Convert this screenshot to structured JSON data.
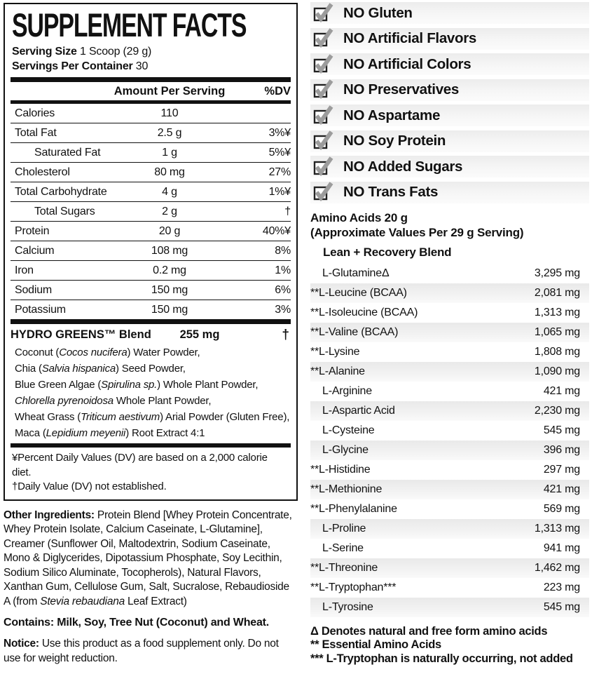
{
  "facts": {
    "title": "SUPPLEMENT FACTS",
    "serving_size_label": "Serving Size",
    "serving_size_value": "1 Scoop (29 g)",
    "servings_per_container_label": "Servings Per Container",
    "servings_per_container_value": "30",
    "column_headers": {
      "amount": "Amount Per Serving",
      "dv": "%DV"
    },
    "rows": [
      {
        "name": "Calories",
        "amount": "110",
        "dv": ""
      },
      {
        "name": "Total Fat",
        "amount": "2.5 g",
        "dv": "3%¥"
      },
      {
        "name": "Saturated Fat",
        "amount": "1 g",
        "dv": "5%¥"
      },
      {
        "name": "Cholesterol",
        "amount": "80 mg",
        "dv": "27%"
      },
      {
        "name": "Total Carbohydrate",
        "amount": "4 g",
        "dv": "1%¥"
      },
      {
        "name": "Total Sugars",
        "amount": "2 g",
        "dv": "†"
      },
      {
        "name": "Protein",
        "amount": "20 g",
        "dv": "40%¥"
      },
      {
        "name": "Calcium",
        "amount": "108 mg",
        "dv": "8%"
      },
      {
        "name": "Iron",
        "amount": "0.2 mg",
        "dv": "1%"
      },
      {
        "name": "Sodium",
        "amount": "150 mg",
        "dv": "6%"
      },
      {
        "name": "Potassium",
        "amount": "150 mg",
        "dv": "3%"
      }
    ],
    "blend": {
      "name": "HYDRO GREENS™ Blend",
      "amount": "255 mg",
      "dv": "†",
      "ingredient_lines": [
        [
          {
            "t": "Coconut ("
          },
          {
            "t": "Cocos nucifera",
            "i": true
          },
          {
            "t": ") Water Powder,"
          }
        ],
        [
          {
            "t": "Chia ("
          },
          {
            "t": "Salvia hispanica",
            "i": true
          },
          {
            "t": ") Seed Powder,"
          }
        ],
        [
          {
            "t": "Blue Green Algae ("
          },
          {
            "t": "Spirulina sp.",
            "i": true
          },
          {
            "t": ") Whole Plant Powder,"
          }
        ],
        [
          {
            "t": "Chlorella pyrenoidosa",
            "i": true
          },
          {
            "t": " Whole Plant Powder,"
          }
        ],
        [
          {
            "t": "Wheat Grass ("
          },
          {
            "t": "Triticum aestivum",
            "i": true
          },
          {
            "t": ") Arial Powder (Gluten Free),"
          }
        ],
        [
          {
            "t": "Maca ("
          },
          {
            "t": "Lepidium meyenii",
            "i": true
          },
          {
            "t": ") Root Extract 4:1"
          }
        ]
      ]
    },
    "footnotes": [
      "¥Percent Daily Values (DV) are based on a 2,000 calorie diet.",
      "†Daily Value (DV) not established."
    ]
  },
  "other_ingredients_segments": [
    {
      "t": "Other Ingredients: ",
      "b": true
    },
    {
      "t": "Protein Blend [Whey Protein Concentrate, Whey Protein Isolate, Calcium Caseinate, L-Glutamine], Creamer (Sunflower Oil, Maltodextrin, Sodium Caseinate, Mono & Diglycerides, Dipotassium Phosphate, Soy Lecithin, Sodium Silico Aluminate, Tocopherols), Natural Flavors, Xanthan Gum, Cellulose Gum, Salt, Sucralose, Rebaudioside A (from "
    },
    {
      "t": "Stevia rebaudiana",
      "i": true
    },
    {
      "t": " Leaf Extract)"
    }
  ],
  "contains_text": "Contains: Milk, Soy, Tree Nut (Coconut) and Wheat.",
  "notice_segments": [
    {
      "t": "Notice: ",
      "b": true
    },
    {
      "t": "Use this product as a food supplement only. Do not use for weight reduction."
    }
  ],
  "checklist": {
    "items": [
      "NO Gluten",
      "NO Artificial Flavors",
      "NO Artificial Colors",
      "NO Preservatives",
      "NO Aspartame",
      "NO Soy Protein",
      "NO Added Sugars",
      "NO Trans Fats"
    ]
  },
  "amino": {
    "heading_line1": "Amino Acids 20 g",
    "heading_line2": "(Approximate Values Per 29 g Serving)",
    "blend_title": "Lean + Recovery Blend",
    "rows": [
      {
        "name": "L-GlutamineΔ",
        "value": "3,295 mg"
      },
      {
        "name": "**L-Leucine (BCAA)",
        "value": "2,081 mg"
      },
      {
        "name": "**L-Isoleucine (BCAA)",
        "value": "1,313 mg"
      },
      {
        "name": "**L-Valine (BCAA)",
        "value": "1,065 mg"
      },
      {
        "name": "**L-Lysine",
        "value": "1,808 mg"
      },
      {
        "name": "**L-Alanine",
        "value": "1,090 mg"
      },
      {
        "name": "L-Arginine",
        "value": "421 mg"
      },
      {
        "name": "L-Aspartic Acid",
        "value": "2,230 mg"
      },
      {
        "name": "L-Cysteine",
        "value": "545 mg"
      },
      {
        "name": "L-Glycine",
        "value": "396 mg"
      },
      {
        "name": "**L-Histidine",
        "value": "297 mg"
      },
      {
        "name": "**L-Methionine",
        "value": "421 mg"
      },
      {
        "name": "**L-Phenylalanine",
        "value": "569 mg"
      },
      {
        "name": "L-Proline",
        "value": "1,313 mg"
      },
      {
        "name": "L-Serine",
        "value": "941 mg"
      },
      {
        "name": "**L-Threonine",
        "value": "1,462 mg"
      },
      {
        "name": "**L-Tryptophan***",
        "value": "223 mg"
      },
      {
        "name": "L-Tyrosine",
        "value": "545 mg"
      }
    ],
    "footnotes": [
      "Δ Denotes natural and free form amino acids",
      "** Essential Amino Acids",
      "*** L-Tryptophan is naturally occurring, not added"
    ]
  },
  "colors": {
    "text": "#111111",
    "checkmark_gray": "#9c9c9c",
    "band_gray": "#ececec"
  }
}
